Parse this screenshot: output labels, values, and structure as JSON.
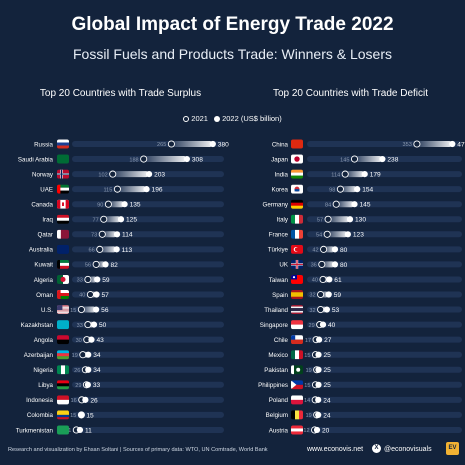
{
  "header": {
    "title": "Global Impact of Energy Trade 2022",
    "subtitle": "Fossil Fuels and Products Trade: Winners & Losers"
  },
  "footer": {
    "source": "Research and visualization by Ehsan Soltani | Sources of primary data: WTO, UN Comtrade, World Bank",
    "website": "www.econovis.net",
    "x_icon": "x-logo-icon",
    "handle": "@econovisuals",
    "logo_text": "EV"
  },
  "colors": {
    "background": "#13233c",
    "track": "#1f3354",
    "text": "#ffffff",
    "muted": "#8c9ab0",
    "accent_logo": "#f2b233"
  },
  "chart_data": [
    {
      "type": "dumbbell",
      "title": "Top 20 Countries with Trade Surplus",
      "legend": {
        "items": [
          "2021",
          "2022 (US$ billion)"
        ],
        "placement": "top-center"
      },
      "series": [
        {
          "name": "2021"
        },
        {
          "name": "2022 (US$ billion)"
        }
      ],
      "grid": false,
      "xlim": [
        0,
        400
      ],
      "rows": [
        {
          "country": "Russia",
          "v2021": 265,
          "v2022": 380,
          "flag": "russia-flag-icon"
        },
        {
          "country": "Saudi Arabia",
          "v2021": 188,
          "v2022": 308,
          "flag": "saudi-arabia-flag-icon"
        },
        {
          "country": "Norway",
          "v2021": 102,
          "v2022": 203,
          "flag": "norway-flag-icon"
        },
        {
          "country": "UAE",
          "v2021": 115,
          "v2022": 196,
          "flag": "uae-flag-icon"
        },
        {
          "country": "Canada",
          "v2021": 90,
          "v2022": 135,
          "flag": "canada-flag-icon"
        },
        {
          "country": "Iraq",
          "v2021": 77,
          "v2022": 125,
          "flag": "iraq-flag-icon"
        },
        {
          "country": "Qatar",
          "v2021": 73,
          "v2022": 114,
          "flag": "qatar-flag-icon"
        },
        {
          "country": "Australia",
          "v2021": 66,
          "v2022": 113,
          "flag": "australia-flag-icon"
        },
        {
          "country": "Kuwait",
          "v2021": 56,
          "v2022": 82,
          "flag": "kuwait-flag-icon"
        },
        {
          "country": "Algeria",
          "v2021": 33,
          "v2022": 59,
          "flag": "algeria-flag-icon"
        },
        {
          "country": "Oman",
          "v2021": 40,
          "v2022": 57,
          "flag": "oman-flag-icon"
        },
        {
          "country": "U.S.",
          "v2021": 15,
          "v2022": 56,
          "flag": "us-flag-icon"
        },
        {
          "country": "Kazakhstan",
          "v2021": 33,
          "v2022": 50,
          "flag": "kazakhstan-flag-icon"
        },
        {
          "country": "Angola",
          "v2021": 30,
          "v2022": 43,
          "flag": "angola-flag-icon"
        },
        {
          "country": "Azerbaijan",
          "v2021": 19,
          "v2022": 34,
          "flag": "azerbaijan-flag-icon"
        },
        {
          "country": "Nigeria",
          "v2021": 26,
          "v2022": 34,
          "flag": "nigeria-flag-icon"
        },
        {
          "country": "Libya",
          "v2021": 29,
          "v2022": 33,
          "flag": "libya-flag-icon"
        },
        {
          "country": "Indonesia",
          "v2021": 16,
          "v2022": 26,
          "flag": "indonesia-flag-icon"
        },
        {
          "country": "Colombia",
          "v2021": 15,
          "v2022": 15,
          "flag": "colombia-flag-icon"
        },
        {
          "country": "Turkmenistan",
          "v2021": 1,
          "v2022": 11,
          "flag": "turkmenistan-flag-icon"
        }
      ]
    },
    {
      "type": "dumbbell",
      "title": "Top 20 Countries with Trade Deficit",
      "legend": {
        "items": [
          "2021",
          "2022 (US$ billion)"
        ],
        "placement": "top-center"
      },
      "series": [
        {
          "name": "2021"
        },
        {
          "name": "2022 (US$ billion)"
        }
      ],
      "grid": false,
      "xlim": [
        0,
        490
      ],
      "rows": [
        {
          "country": "China",
          "v2021": 353,
          "v2022": 471,
          "flag": "china-flag-icon"
        },
        {
          "country": "Japan",
          "v2021": 145,
          "v2022": 238,
          "flag": "japan-flag-icon"
        },
        {
          "country": "India",
          "v2021": 114,
          "v2022": 179,
          "flag": "india-flag-icon"
        },
        {
          "country": "Korea",
          "v2021": 98,
          "v2022": 154,
          "flag": "korea-flag-icon"
        },
        {
          "country": "Germany",
          "v2021": 84,
          "v2022": 145,
          "flag": "germany-flag-icon"
        },
        {
          "country": "Italy",
          "v2021": 57,
          "v2022": 130,
          "flag": "italy-flag-icon"
        },
        {
          "country": "France",
          "v2021": 54,
          "v2022": 123,
          "flag": "france-flag-icon"
        },
        {
          "country": "Türkiye",
          "v2021": 42,
          "v2022": 80,
          "flag": "turkiye-flag-icon"
        },
        {
          "country": "UK",
          "v2021": 36,
          "v2022": 80,
          "flag": "uk-flag-icon"
        },
        {
          "country": "Taiwan",
          "v2021": 40,
          "v2022": 61,
          "flag": "taiwan-flag-icon"
        },
        {
          "country": "Spain",
          "v2021": 32,
          "v2022": 59,
          "flag": "spain-flag-icon"
        },
        {
          "country": "Thailand",
          "v2021": 32,
          "v2022": 53,
          "flag": "thailand-flag-icon"
        },
        {
          "country": "Singapore",
          "v2021": 29,
          "v2022": 40,
          "flag": "singapore-flag-icon"
        },
        {
          "country": "Chile",
          "v2021": 17,
          "v2022": 27,
          "flag": "chile-flag-icon"
        },
        {
          "country": "Mexico",
          "v2021": 15,
          "v2022": 25,
          "flag": "mexico-flag-icon"
        },
        {
          "country": "Pakistan",
          "v2021": 19,
          "v2022": 25,
          "flag": "pakistan-flag-icon"
        },
        {
          "country": "Philippines",
          "v2021": 15,
          "v2022": 25,
          "flag": "philippines-flag-icon"
        },
        {
          "country": "Poland",
          "v2021": 14,
          "v2022": 24,
          "flag": "poland-flag-icon"
        },
        {
          "country": "Belgium",
          "v2021": 19,
          "v2022": 24,
          "flag": "belgium-flag-icon"
        },
        {
          "country": "Austria",
          "v2021": 12,
          "v2022": 20,
          "flag": "austria-flag-icon"
        }
      ]
    }
  ]
}
